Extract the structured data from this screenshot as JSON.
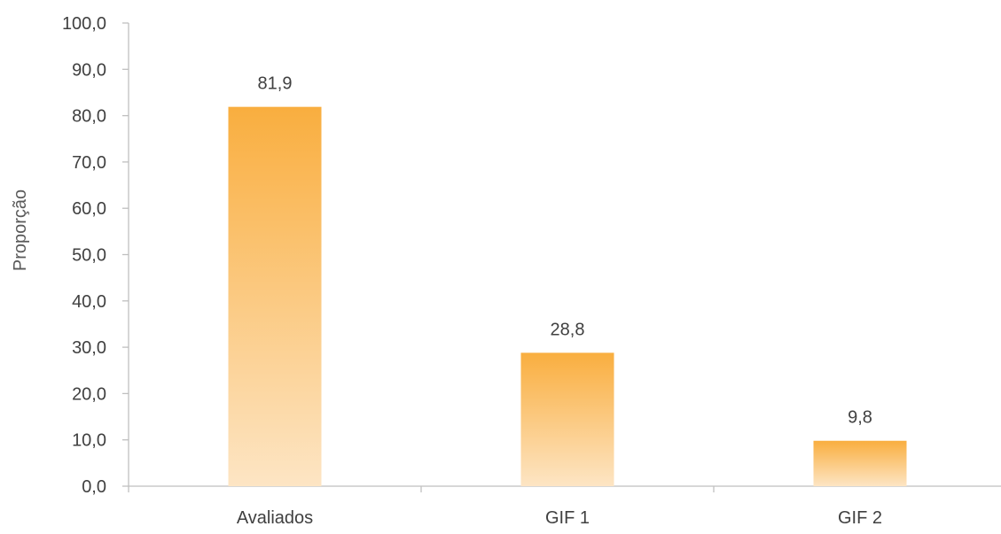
{
  "chart_data": {
    "type": "bar",
    "categories": [
      "Avaliados",
      "GIF 1",
      "GIF 2"
    ],
    "values": [
      81.9,
      28.8,
      9.8
    ],
    "value_labels": [
      "81,9",
      "28,8",
      "9,8"
    ],
    "ylabel": "Proporção",
    "xlabel": "",
    "ylim": [
      0,
      100
    ],
    "yticks": [
      0,
      10,
      20,
      30,
      40,
      50,
      60,
      70,
      80,
      90,
      100
    ],
    "ytick_labels": [
      "0,0",
      "10,0",
      "20,0",
      "30,0",
      "40,0",
      "50,0",
      "60,0",
      "70,0",
      "80,0",
      "90,0",
      "100,0"
    ],
    "grid": false,
    "legend": "none",
    "colors": {
      "bar_top": "#F9AE3F",
      "bar_bottom": "#FDE5C4",
      "axis": "#BFBFBF",
      "text": "#404040"
    }
  }
}
